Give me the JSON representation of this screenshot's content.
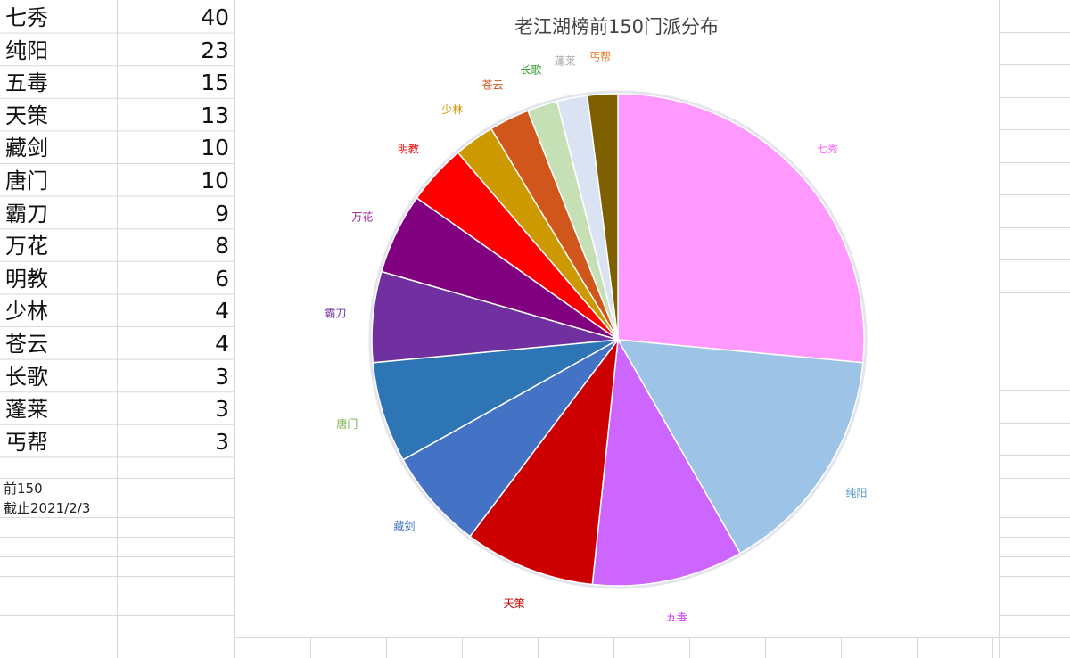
{
  "sheet": {
    "rows": [
      {
        "name": "七秀",
        "value": "40"
      },
      {
        "name": "纯阳",
        "value": "23"
      },
      {
        "name": "五毒",
        "value": "15"
      },
      {
        "name": "天策",
        "value": "13"
      },
      {
        "name": "藏剑",
        "value": "10"
      },
      {
        "name": "唐门",
        "value": "10"
      },
      {
        "name": "霸刀",
        "value": "9"
      },
      {
        "name": "万花",
        "value": "8"
      },
      {
        "name": "明教",
        "value": "6"
      },
      {
        "name": "少林",
        "value": "4"
      },
      {
        "name": "苍云",
        "value": "4"
      },
      {
        "name": "长歌",
        "value": "3"
      },
      {
        "name": "蓬莱",
        "value": "3"
      },
      {
        "name": "丐帮",
        "value": "3"
      }
    ],
    "notes": [
      "前150",
      "截止2021/2/3"
    ]
  },
  "chart_data": {
    "type": "pie",
    "title": "老江湖榜前150门派分布",
    "categories": [
      "七秀",
      "纯阳",
      "五毒",
      "天策",
      "藏剑",
      "唐门",
      "霸刀",
      "万花",
      "明教",
      "少林",
      "苍云",
      "长歌",
      "蓬莱",
      "丐帮"
    ],
    "values": [
      40,
      23,
      15,
      13,
      10,
      10,
      9,
      8,
      6,
      4,
      4,
      3,
      3,
      3
    ],
    "colors": [
      "#ff99ff",
      "#9dc3e6",
      "#cc66ff",
      "#cc0000",
      "#4472c4",
      "#2e75b6",
      "#7030a0",
      "#800080",
      "#ff0000",
      "#cc9900",
      "#d0561b",
      "#c5e0b4",
      "#dae3f3",
      "#7f6000"
    ],
    "label_colors": [
      "#ff66ff",
      "#5b9bd5",
      "#cc33ff",
      "#cc0000",
      "#4472c4",
      "#70ad47",
      "#7030a0",
      "#a020a0",
      "#ff0000",
      "#cc9900",
      "#d0561b",
      "#339933",
      "#aaaaaa",
      "#ed7d31"
    ],
    "start_angle_deg": 0,
    "direction": "clockwise",
    "legend": "none",
    "data_labels": "category name outside slices"
  }
}
